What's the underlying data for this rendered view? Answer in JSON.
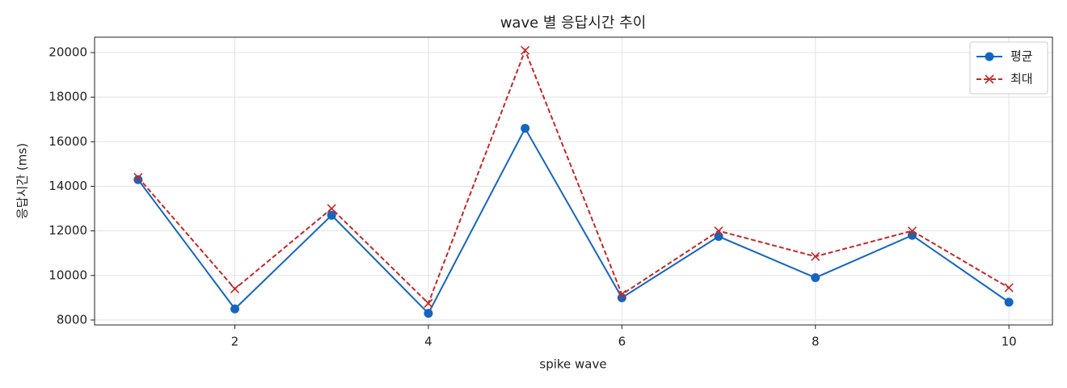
{
  "chart_data": {
    "type": "line",
    "title": "wave 별 응답시간 추이",
    "x_label": "spike wave",
    "y_label": "응답시간 (ms)",
    "x": [
      1,
      2,
      3,
      4,
      5,
      6,
      7,
      8,
      9,
      10
    ],
    "series": [
      {
        "name": "평균",
        "color": "#1565c0",
        "marker": "circle",
        "dash": false,
        "values": [
          14300,
          8500,
          12700,
          8300,
          16600,
          9000,
          11750,
          9900,
          11800,
          8800
        ]
      },
      {
        "name": "최대",
        "color": "#c62828",
        "marker": "x",
        "dash": true,
        "values": [
          14400,
          9400,
          13000,
          8750,
          20100,
          9150,
          12000,
          10850,
          12000,
          9450
        ]
      }
    ],
    "xlim": [
      0.55,
      10.45
    ],
    "ylim": [
      7780,
      20690
    ],
    "xticks": [
      2,
      4,
      6,
      8,
      10
    ],
    "yticks": [
      8000,
      10000,
      12000,
      14000,
      16000,
      18000,
      20000
    ],
    "grid": true,
    "legend": "upper-right"
  }
}
